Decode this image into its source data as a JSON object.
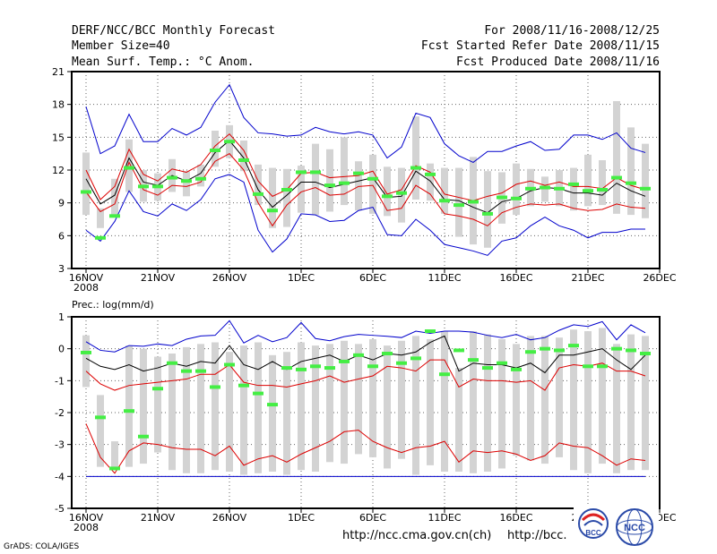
{
  "header": {
    "title": "DERF/NCC/BCC Monthly Forecast",
    "member_size": "Member Size=40",
    "variable": "Mean Surf. Temp.: °C Anom.",
    "period": "For 2008/11/16-2008/12/25",
    "refer_date": "Fcst Started Refer Date 2008/11/15",
    "produced_date": "Fcst Produced Date 2008/11/16"
  },
  "footer": {
    "credit": "GrADS: COLA/IGES",
    "url1": "http://ncc.cma.gov.cn(ch)",
    "url2": "http://bcc.",
    "logo1_text": "BCC",
    "logo2_text": "NCC"
  },
  "colors": {
    "envelope": "#0000cc",
    "spread": "#dd0000",
    "mean": "#000000",
    "bar": "#d3d3d3",
    "marker": "#44ee44"
  },
  "chart_data": [
    {
      "type": "line",
      "title": "Mean Surf. Temp.: °C Anom.",
      "x_tick_labels": [
        "16NOV",
        "21NOV",
        "26NOV",
        "1DEC",
        "6DEC",
        "11DEC",
        "16DEC",
        "21DEC",
        "26DEC"
      ],
      "x_year_label": "2008",
      "ylim": [
        3,
        21
      ],
      "yticks": [
        3,
        6,
        9,
        12,
        15,
        18,
        21
      ],
      "days": 40,
      "series": [
        {
          "name": "max",
          "values": [
            17.8,
            13.5,
            14.2,
            17.1,
            14.6,
            14.6,
            15.8,
            15.2,
            15.9,
            18.2,
            19.8,
            16.8,
            15.4,
            15.3,
            15.1,
            15.2,
            15.9,
            15.5,
            15.3,
            15.5,
            15.2,
            13.1,
            14.1,
            17.2,
            16.8,
            14.4,
            13.3,
            12.7,
            13.7,
            13.7,
            14.2,
            14.6,
            13.8,
            13.9,
            15.2,
            15.2,
            14.8,
            15.4,
            14.0,
            13.6
          ]
        },
        {
          "name": "upper",
          "values": [
            12.0,
            9.3,
            10.5,
            13.9,
            11.6,
            11.0,
            12.1,
            11.8,
            12.5,
            14.2,
            15.3,
            13.8,
            11.0,
            9.6,
            10.2,
            11.7,
            11.8,
            11.3,
            11.4,
            11.5,
            11.9,
            9.8,
            10.2,
            12.4,
            11.8,
            9.8,
            9.5,
            9.2,
            9.6,
            9.9,
            10.7,
            11.0,
            10.6,
            10.9,
            10.5,
            10.5,
            10.3,
            11.3,
            10.6,
            10.2
          ]
        },
        {
          "name": "mean",
          "values": [
            11.2,
            8.9,
            9.7,
            13.1,
            10.9,
            10.6,
            11.5,
            11.0,
            11.7,
            13.6,
            14.7,
            13.1,
            10.2,
            8.6,
            9.7,
            10.9,
            10.9,
            10.4,
            10.7,
            11.0,
            11.3,
            9.5,
            9.6,
            11.9,
            11.0,
            9.3,
            9.2,
            8.6,
            8.1,
            9.1,
            9.4,
            10.1,
            10.4,
            10.3,
            9.9,
            9.9,
            9.7,
            10.8,
            10.1,
            9.6
          ]
        },
        {
          "name": "lower",
          "values": [
            10.0,
            8.2,
            8.9,
            12.7,
            10.2,
            9.7,
            10.6,
            10.5,
            10.9,
            12.8,
            13.5,
            12.0,
            9.0,
            6.9,
            8.8,
            10.0,
            10.4,
            9.7,
            9.8,
            10.5,
            10.6,
            8.3,
            8.5,
            10.6,
            9.8,
            8.0,
            7.8,
            7.5,
            6.9,
            8.1,
            8.6,
            8.9,
            8.8,
            8.9,
            8.5,
            8.3,
            8.4,
            8.9,
            8.6,
            8.5
          ]
        },
        {
          "name": "min",
          "values": [
            6.5,
            5.5,
            7.3,
            10.1,
            8.2,
            7.8,
            8.9,
            8.3,
            9.3,
            11.2,
            11.6,
            10.9,
            6.5,
            4.5,
            5.7,
            8.0,
            7.9,
            7.3,
            7.4,
            8.3,
            8.6,
            6.1,
            6.0,
            7.5,
            6.5,
            5.2,
            4.9,
            4.6,
            4.2,
            5.5,
            5.8,
            6.9,
            7.7,
            6.9,
            6.5,
            5.8,
            6.3,
            6.3,
            6.6,
            6.6
          ]
        },
        {
          "name": "box_top",
          "values": [
            13.6,
            8.5,
            11.2,
            14.8,
            12.0,
            11.7,
            13.0,
            11.9,
            12.5,
            15.6,
            16.1,
            14.7,
            12.5,
            12.2,
            12.1,
            12.4,
            14.4,
            13.9,
            15.0,
            12.8,
            13.4,
            12.3,
            12.2,
            16.9,
            12.6,
            12.2,
            12.2,
            13.2,
            11.9,
            11.8,
            12.6,
            12.1,
            11.4,
            12.0,
            12.2,
            13.4,
            12.9,
            18.3,
            15.9,
            14.4
          ]
        },
        {
          "name": "box_bottom",
          "values": [
            7.9,
            6.7,
            7.7,
            10.0,
            9.1,
            9.2,
            10.0,
            9.6,
            10.5,
            12.3,
            13.1,
            11.9,
            8.8,
            6.7,
            6.8,
            8.1,
            7.9,
            8.2,
            8.8,
            8.3,
            8.0,
            7.8,
            7.2,
            9.3,
            9.2,
            8.0,
            5.9,
            5.2,
            4.9,
            7.1,
            7.9,
            8.7,
            9.1,
            8.7,
            8.3,
            8.7,
            8.8,
            8.0,
            7.9,
            7.6
          ]
        },
        {
          "name": "marker",
          "values": [
            10.0,
            5.8,
            7.8,
            12.2,
            10.5,
            10.5,
            11.3,
            11.0,
            11.2,
            13.8,
            14.6,
            12.9,
            9.8,
            8.3,
            10.2,
            11.8,
            11.8,
            10.6,
            10.8,
            11.7,
            11.2,
            9.6,
            9.9,
            12.2,
            11.6,
            9.2,
            8.8,
            9.1,
            8.0,
            9.5,
            9.4,
            10.3,
            10.4,
            10.3,
            10.7,
            10.1,
            10.2,
            11.3,
            10.8,
            10.3
          ]
        }
      ]
    },
    {
      "type": "line",
      "title": "Prec.: log(mm/d)",
      "x_tick_labels": [
        "16NOV",
        "21NOV",
        "26NOV",
        "1DEC",
        "6DEC",
        "11DEC",
        "16DEC",
        "21DEC",
        "26DEC"
      ],
      "x_year_label": "2008",
      "ylim": [
        -5,
        1
      ],
      "yticks": [
        -5,
        -4,
        -3,
        -2,
        -1,
        0,
        1
      ],
      "days": 40,
      "series": [
        {
          "name": "max",
          "values": [
            0.22,
            -0.05,
            -0.1,
            0.1,
            0.08,
            0.15,
            0.1,
            0.3,
            0.4,
            0.42,
            0.88,
            0.18,
            0.42,
            0.22,
            0.35,
            0.82,
            0.32,
            0.25,
            0.38,
            0.45,
            0.42,
            0.39,
            0.35,
            0.55,
            0.48,
            0.55,
            0.55,
            0.52,
            0.42,
            0.35,
            0.45,
            0.28,
            0.35,
            0.58,
            0.75,
            0.7,
            0.85,
            0.28,
            0.75,
            0.5
          ]
        },
        {
          "name": "mean",
          "values": [
            -0.3,
            -0.55,
            -0.65,
            -0.5,
            -0.7,
            -0.6,
            -0.45,
            -0.55,
            -0.4,
            -0.45,
            0.1,
            -0.5,
            -0.65,
            -0.4,
            -0.65,
            -0.4,
            -0.3,
            -0.2,
            -0.4,
            -0.2,
            -0.35,
            -0.15,
            -0.2,
            -0.1,
            0.2,
            0.4,
            -0.7,
            -0.45,
            -0.5,
            -0.5,
            -0.6,
            -0.45,
            -0.75,
            -0.2,
            -0.2,
            -0.1,
            0.0,
            -0.35,
            -0.65,
            -0.2
          ]
        },
        {
          "name": "upper",
          "values": [
            -0.7,
            -1.1,
            -1.3,
            -1.15,
            -1.1,
            -1.05,
            -1.0,
            -0.95,
            -0.8,
            -0.8,
            -0.5,
            -1.05,
            -1.15,
            -1.15,
            -1.2,
            -1.1,
            -1.0,
            -0.85,
            -1.05,
            -0.95,
            -0.85,
            -0.55,
            -0.6,
            -0.7,
            -0.35,
            -0.35,
            -1.2,
            -0.95,
            -1.0,
            -1.0,
            -1.05,
            -1.0,
            -1.3,
            -0.6,
            -0.5,
            -0.55,
            -0.45,
            -0.7,
            -0.7,
            -0.85
          ]
        },
        {
          "name": "lower",
          "values": [
            -2.35,
            -3.4,
            -3.9,
            -3.2,
            -2.95,
            -3.0,
            -3.1,
            -3.15,
            -3.15,
            -3.35,
            -3.05,
            -3.65,
            -3.45,
            -3.35,
            -3.55,
            -3.3,
            -3.1,
            -2.9,
            -2.6,
            -2.55,
            -2.9,
            -3.1,
            -3.25,
            -3.1,
            -3.05,
            -2.9,
            -3.55,
            -3.2,
            -3.25,
            -3.2,
            -3.3,
            -3.5,
            -3.35,
            -2.95,
            -3.05,
            -3.1,
            -3.35,
            -3.65,
            -3.45,
            -3.5
          ]
        },
        {
          "name": "min",
          "values": [
            -4.0,
            -4.0,
            -4.0,
            -4.0,
            -4.0,
            -4.0,
            -4.0,
            -4.0,
            -4.0,
            -4.0,
            -4.0,
            -4.0,
            -4.0,
            -4.0,
            -4.0,
            -4.0,
            -4.0,
            -4.0,
            -4.0,
            -4.0,
            -4.0,
            -4.0,
            -4.0,
            -4.0,
            -4.0,
            -4.0,
            -4.0,
            -4.0,
            -4.0,
            -4.0,
            -4.0,
            -4.0,
            -4.0,
            -4.0,
            -4.0,
            -4.0,
            -4.0,
            -4.0,
            -4.0,
            -4.0
          ]
        },
        {
          "name": "box_top",
          "values": [
            0.42,
            -1.45,
            -2.9,
            0.1,
            0.0,
            -0.25,
            -0.15,
            0.05,
            0.15,
            0.2,
            -0.1,
            0.1,
            0.2,
            -0.2,
            -0.1,
            0.2,
            0.1,
            0.15,
            0.25,
            0.15,
            0.3,
            0.1,
            0.25,
            0.4,
            0.3,
            0.55,
            -0.6,
            0.55,
            0.45,
            0.3,
            0.15,
            0.4,
            0.4,
            0.35,
            0.6,
            0.55,
            0.65,
            0.15,
            0.45,
            0.4
          ]
        },
        {
          "name": "box_bottom",
          "values": [
            -1.2,
            -3.7,
            -3.7,
            -3.7,
            -3.6,
            -3.25,
            -3.8,
            -3.9,
            -3.9,
            -3.8,
            -3.85,
            -3.95,
            -3.9,
            -3.85,
            -3.95,
            -3.8,
            -3.85,
            -3.55,
            -3.6,
            -3.3,
            -3.4,
            -3.75,
            -3.45,
            -3.95,
            -3.65,
            -3.85,
            -3.85,
            -3.9,
            -3.85,
            -3.75,
            -3.35,
            -3.5,
            -3.6,
            -3.4,
            -3.8,
            -3.9,
            -3.6,
            -3.9,
            -3.8,
            -3.8
          ]
        },
        {
          "name": "marker",
          "values": [
            -0.12,
            -2.15,
            -3.75,
            -1.95,
            -2.75,
            -1.25,
            -0.45,
            -0.7,
            -0.7,
            -1.2,
            -0.5,
            -1.15,
            -1.4,
            -1.75,
            -0.6,
            -0.65,
            -0.55,
            -0.6,
            -0.4,
            -0.2,
            -0.55,
            -0.15,
            -0.45,
            -0.3,
            0.55,
            -0.8,
            -0.05,
            -0.35,
            -0.6,
            -0.45,
            -0.65,
            -0.1,
            0.0,
            -0.05,
            0.1,
            -0.55,
            -0.55,
            0.0,
            -0.05,
            -0.15
          ]
        }
      ]
    }
  ]
}
